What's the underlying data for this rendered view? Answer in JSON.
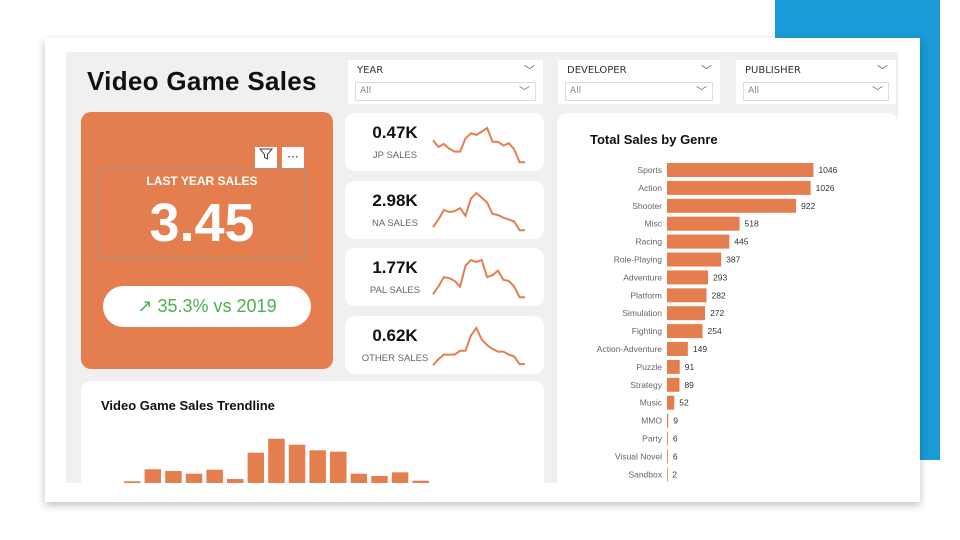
{
  "header": {
    "title": "Video Game Sales"
  },
  "filters": [
    {
      "label": "YEAR",
      "value": "All"
    },
    {
      "label": "DEVELOPER",
      "value": "All"
    },
    {
      "label": "PUBLISHER",
      "value": "All"
    }
  ],
  "kpi": {
    "title": "LAST YEAR SALES",
    "value": "3.45",
    "change": "35.3% vs 2019",
    "change_icon": "arrow-up-right-icon",
    "change_color": "#4caf50",
    "accent": "#e47e4f"
  },
  "regions": [
    {
      "value": "0.47K",
      "label": "JP SALES",
      "trend": [
        0.6,
        0.42,
        0.5,
        0.38,
        0.3,
        0.3,
        0.65,
        0.78,
        0.74,
        0.82,
        0.92,
        0.56,
        0.56,
        0.46,
        0.52,
        0.36,
        0.02,
        0.02
      ]
    },
    {
      "value": "2.98K",
      "label": "NA SALES",
      "trend": [
        0.1,
        0.3,
        0.55,
        0.5,
        0.52,
        0.6,
        0.4,
        0.85,
        1.0,
        0.88,
        0.75,
        0.45,
        0.42,
        0.35,
        0.3,
        0.25,
        0.02,
        0.02
      ]
    },
    {
      "value": "1.77K",
      "label": "PAL SALES",
      "trend": [
        0.1,
        0.3,
        0.55,
        0.52,
        0.45,
        0.3,
        0.85,
        1.0,
        0.95,
        1.0,
        0.55,
        0.6,
        0.72,
        0.48,
        0.45,
        0.3,
        0.02,
        0.02
      ]
    },
    {
      "value": "0.62K",
      "label": "OTHER SALES",
      "trend": [
        0.02,
        0.18,
        0.3,
        0.3,
        0.3,
        0.4,
        0.4,
        0.8,
        1.0,
        0.7,
        0.55,
        0.45,
        0.38,
        0.38,
        0.3,
        0.25,
        0.05,
        0.05
      ]
    }
  ],
  "chart_data": [
    {
      "type": "bar",
      "title": "Video Game Sales Trendline",
      "values": [
        1.7,
        13.7,
        12,
        9.3,
        13.3,
        4,
        30.3,
        44.3,
        38.3,
        32.7,
        31.3,
        9.3,
        7,
        10.7,
        2.3
      ],
      "color": "#e47e4f"
    },
    {
      "type": "bar",
      "orientation": "horizontal",
      "title": "Total Sales by Genre",
      "color": "#e47e4f",
      "categories": [
        "Sports",
        "Action",
        "Shooter",
        "Misc",
        "Racing",
        "Role-Playing",
        "Adventure",
        "Platform",
        "Simulation",
        "Fighting",
        "Action-Adventure",
        "Puzzle",
        "Strategy",
        "Music",
        "MMO",
        "Party",
        "Visual Novel",
        "Sandbox"
      ],
      "values": [
        1046,
        1026,
        922,
        518,
        445,
        387,
        293,
        282,
        272,
        254,
        149,
        91,
        89,
        52,
        9,
        6,
        6,
        2
      ]
    }
  ]
}
